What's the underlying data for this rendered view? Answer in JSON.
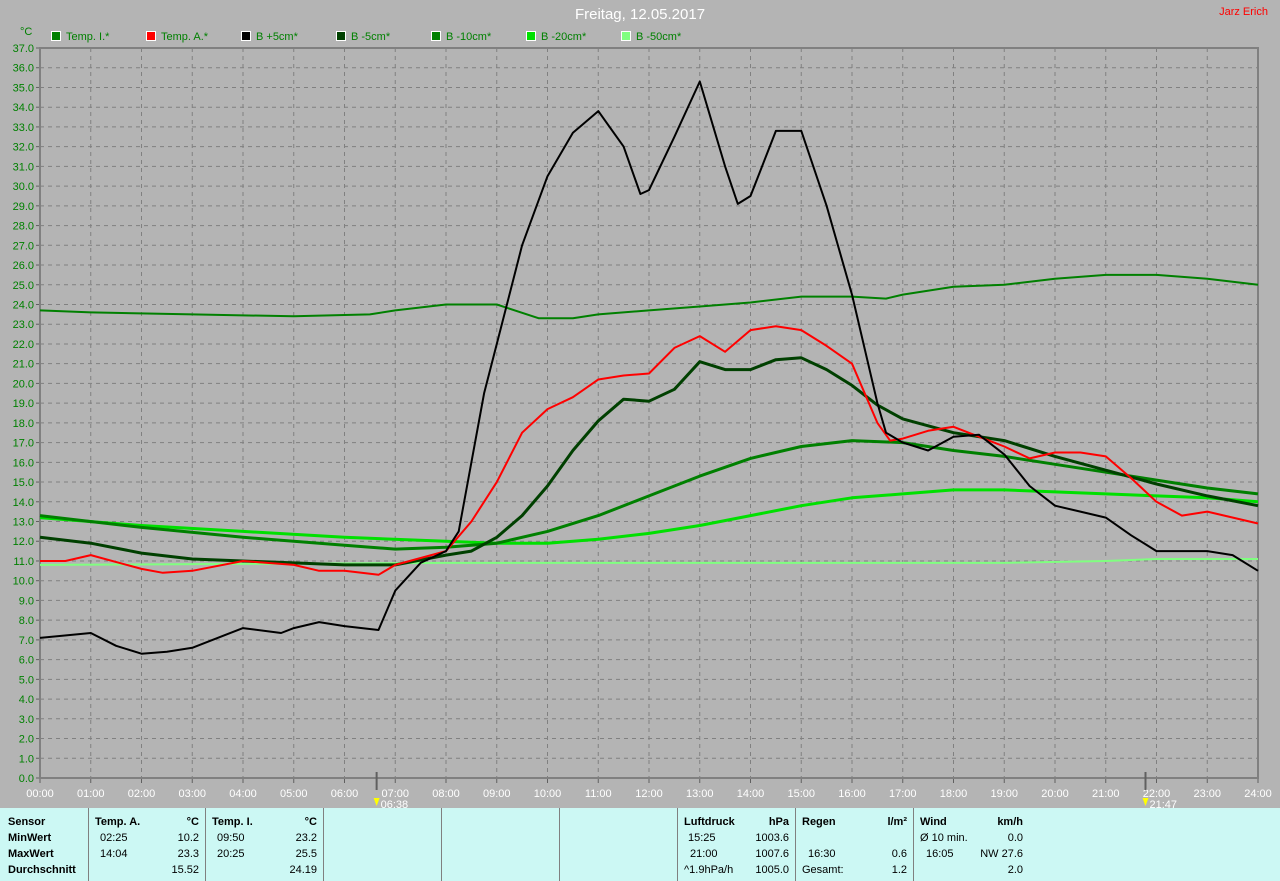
{
  "title": "Freitag, 12.05.2017",
  "author": "Jarz Erich",
  "chart_data": {
    "type": "line",
    "title": "Freitag, 12.05.2017",
    "ylabel": "°C",
    "xlabel": "",
    "ylim": [
      0,
      37
    ],
    "xlim": [
      0,
      24
    ],
    "grid": true,
    "legend_placement": "top",
    "y_ticks": [
      "0.0",
      "1.0",
      "2.0",
      "3.0",
      "4.0",
      "5.0",
      "6.0",
      "7.0",
      "8.0",
      "9.0",
      "10.0",
      "11.0",
      "12.0",
      "13.0",
      "14.0",
      "15.0",
      "16.0",
      "17.0",
      "18.0",
      "19.0",
      "20.0",
      "21.0",
      "22.0",
      "23.0",
      "24.0",
      "25.0",
      "26.0",
      "27.0",
      "28.0",
      "29.0",
      "30.0",
      "31.0",
      "32.0",
      "33.0",
      "34.0",
      "35.0",
      "36.0",
      "37.0"
    ],
    "x_ticks": [
      "00:00",
      "01:00",
      "02:00",
      "03:00",
      "04:00",
      "05:00",
      "06:00",
      "07:00",
      "08:00",
      "09:00",
      "10:00",
      "11:00",
      "12:00",
      "13:00",
      "14:00",
      "15:00",
      "16:00",
      "17:00",
      "18:00",
      "19:00",
      "20:00",
      "21:00",
      "22:00",
      "23:00",
      "24:00"
    ],
    "markers": [
      {
        "label": "06:38",
        "hour": 6.633,
        "icon": "sunrise-icon",
        "color": "#ffff00"
      },
      {
        "label": "21:47",
        "hour": 21.783,
        "icon": "sunset-icon",
        "color": "#ffff00"
      }
    ],
    "series": [
      {
        "name": "Temp. I.*",
        "color": "#008000",
        "points": [
          [
            0,
            23.7
          ],
          [
            1,
            23.6
          ],
          [
            3,
            23.5
          ],
          [
            5,
            23.4
          ],
          [
            6.5,
            23.5
          ],
          [
            7,
            23.7
          ],
          [
            8,
            24.0
          ],
          [
            9,
            24.0
          ],
          [
            9.83,
            23.3
          ],
          [
            10.5,
            23.3
          ],
          [
            11,
            23.5
          ],
          [
            12,
            23.7
          ],
          [
            13,
            23.9
          ],
          [
            14,
            24.1
          ],
          [
            15,
            24.4
          ],
          [
            16,
            24.4
          ],
          [
            16.67,
            24.3
          ],
          [
            17,
            24.5
          ],
          [
            18,
            24.9
          ],
          [
            19,
            25.0
          ],
          [
            20,
            25.3
          ],
          [
            21,
            25.5
          ],
          [
            22,
            25.5
          ],
          [
            23,
            25.3
          ],
          [
            24,
            25.0
          ]
        ]
      },
      {
        "name": "Temp. A.*",
        "color": "#ff0000",
        "points": [
          [
            0,
            11.0
          ],
          [
            0.5,
            11.0
          ],
          [
            1,
            11.3
          ],
          [
            2,
            10.6
          ],
          [
            2.42,
            10.4
          ],
          [
            3,
            10.5
          ],
          [
            4,
            11.0
          ],
          [
            5,
            10.8
          ],
          [
            5.5,
            10.5
          ],
          [
            6,
            10.5
          ],
          [
            6.67,
            10.3
          ],
          [
            7,
            10.8
          ],
          [
            8,
            11.5
          ],
          [
            8.5,
            13.0
          ],
          [
            9,
            15.0
          ],
          [
            9.5,
            17.5
          ],
          [
            10,
            18.7
          ],
          [
            10.5,
            19.3
          ],
          [
            11,
            20.2
          ],
          [
            11.5,
            20.4
          ],
          [
            12,
            20.5
          ],
          [
            12.5,
            21.8
          ],
          [
            13,
            22.4
          ],
          [
            13.5,
            21.6
          ],
          [
            14,
            22.7
          ],
          [
            14.5,
            22.9
          ],
          [
            15,
            22.7
          ],
          [
            15.5,
            21.9
          ],
          [
            16,
            21.0
          ],
          [
            16.5,
            18.0
          ],
          [
            16.75,
            17.1
          ],
          [
            17,
            17.2
          ],
          [
            17.5,
            17.6
          ],
          [
            18,
            17.8
          ],
          [
            18.5,
            17.3
          ],
          [
            19,
            16.8
          ],
          [
            19.5,
            16.2
          ],
          [
            20,
            16.5
          ],
          [
            20.5,
            16.5
          ],
          [
            21,
            16.3
          ],
          [
            21.5,
            15.2
          ],
          [
            22,
            14.0
          ],
          [
            22.5,
            13.3
          ],
          [
            23,
            13.5
          ],
          [
            24,
            12.9
          ]
        ]
      },
      {
        "name": "B +5cm*",
        "color": "#000000",
        "points": [
          [
            0,
            7.1
          ],
          [
            1,
            7.35
          ],
          [
            1.5,
            6.7
          ],
          [
            2,
            6.3
          ],
          [
            2.5,
            6.4
          ],
          [
            3,
            6.6
          ],
          [
            3.5,
            7.1
          ],
          [
            4,
            7.6
          ],
          [
            4.75,
            7.35
          ],
          [
            5,
            7.6
          ],
          [
            5.5,
            7.9
          ],
          [
            6,
            7.7
          ],
          [
            6.67,
            7.5
          ],
          [
            7,
            9.5
          ],
          [
            7.5,
            10.9
          ],
          [
            8,
            11.5
          ],
          [
            8.25,
            12.5
          ],
          [
            8.5,
            16.0
          ],
          [
            8.75,
            19.5
          ],
          [
            9,
            22.0
          ],
          [
            9.5,
            27.0
          ],
          [
            10,
            30.5
          ],
          [
            10.5,
            32.7
          ],
          [
            11,
            33.8
          ],
          [
            11.5,
            32.0
          ],
          [
            11.83,
            29.6
          ],
          [
            12,
            29.8
          ],
          [
            12.5,
            32.5
          ],
          [
            13,
            35.3
          ],
          [
            13.5,
            31.0
          ],
          [
            13.75,
            29.1
          ],
          [
            14,
            29.5
          ],
          [
            14.5,
            32.8
          ],
          [
            15,
            32.8
          ],
          [
            15.5,
            29.0
          ],
          [
            16,
            24.5
          ],
          [
            16.5,
            19.0
          ],
          [
            16.67,
            17.5
          ],
          [
            17,
            17.0
          ],
          [
            17.5,
            16.6
          ],
          [
            18,
            17.3
          ],
          [
            18.5,
            17.4
          ],
          [
            19,
            16.4
          ],
          [
            19.5,
            14.8
          ],
          [
            20,
            13.8
          ],
          [
            20.5,
            13.5
          ],
          [
            21,
            13.2
          ],
          [
            21.5,
            12.3
          ],
          [
            22,
            11.5
          ],
          [
            23,
            11.5
          ],
          [
            23.5,
            11.3
          ],
          [
            24,
            10.5
          ]
        ]
      },
      {
        "name": "B -5cm*",
        "color": "#004000",
        "points": [
          [
            0,
            12.2
          ],
          [
            1,
            11.9
          ],
          [
            2,
            11.4
          ],
          [
            3,
            11.1
          ],
          [
            4,
            11.0
          ],
          [
            5,
            10.9
          ],
          [
            6,
            10.8
          ],
          [
            7,
            10.8
          ],
          [
            8,
            11.3
          ],
          [
            8.5,
            11.5
          ],
          [
            9,
            12.2
          ],
          [
            9.5,
            13.3
          ],
          [
            10,
            14.8
          ],
          [
            10.5,
            16.6
          ],
          [
            11,
            18.1
          ],
          [
            11.5,
            19.2
          ],
          [
            12,
            19.1
          ],
          [
            12.5,
            19.7
          ],
          [
            13,
            21.1
          ],
          [
            13.5,
            20.7
          ],
          [
            14,
            20.7
          ],
          [
            14.5,
            21.2
          ],
          [
            15,
            21.3
          ],
          [
            15.5,
            20.7
          ],
          [
            16,
            19.9
          ],
          [
            16.5,
            18.9
          ],
          [
            17,
            18.2
          ],
          [
            18,
            17.5
          ],
          [
            19,
            17.1
          ],
          [
            20,
            16.3
          ],
          [
            21,
            15.6
          ],
          [
            22,
            14.9
          ],
          [
            23,
            14.3
          ],
          [
            24,
            13.8
          ]
        ]
      },
      {
        "name": "B -10cm*",
        "color": "#008000",
        "points": [
          [
            0,
            13.3
          ],
          [
            2,
            12.7
          ],
          [
            4,
            12.2
          ],
          [
            6,
            11.8
          ],
          [
            7,
            11.6
          ],
          [
            8,
            11.7
          ],
          [
            9,
            11.9
          ],
          [
            10,
            12.5
          ],
          [
            11,
            13.3
          ],
          [
            12,
            14.3
          ],
          [
            13,
            15.3
          ],
          [
            14,
            16.2
          ],
          [
            15,
            16.8
          ],
          [
            16,
            17.1
          ],
          [
            17,
            17.0
          ],
          [
            18,
            16.6
          ],
          [
            19,
            16.3
          ],
          [
            20,
            15.9
          ],
          [
            21,
            15.5
          ],
          [
            22,
            15.1
          ],
          [
            23,
            14.7
          ],
          [
            24,
            14.4
          ]
        ]
      },
      {
        "name": "B -20cm*",
        "color": "#00e000",
        "points": [
          [
            0,
            13.2
          ],
          [
            2,
            12.8
          ],
          [
            4,
            12.5
          ],
          [
            6,
            12.2
          ],
          [
            8,
            12.0
          ],
          [
            9,
            11.9
          ],
          [
            10,
            11.9
          ],
          [
            11,
            12.1
          ],
          [
            12,
            12.4
          ],
          [
            13,
            12.8
          ],
          [
            14,
            13.3
          ],
          [
            15,
            13.8
          ],
          [
            16,
            14.2
          ],
          [
            17,
            14.4
          ],
          [
            18,
            14.6
          ],
          [
            19,
            14.6
          ],
          [
            20,
            14.5
          ],
          [
            21,
            14.4
          ],
          [
            22,
            14.3
          ],
          [
            23,
            14.2
          ],
          [
            24,
            14.0
          ]
        ]
      },
      {
        "name": "B -50cm*",
        "color": "#80ff80",
        "points": [
          [
            0,
            10.8
          ],
          [
            4,
            10.85
          ],
          [
            8,
            10.9
          ],
          [
            12,
            10.9
          ],
          [
            16,
            10.9
          ],
          [
            19,
            10.9
          ],
          [
            21,
            11.0
          ],
          [
            22,
            11.1
          ],
          [
            24,
            11.1
          ]
        ]
      }
    ]
  },
  "panel": {
    "sensor": {
      "header": "Sensor",
      "rows": [
        "MinWert",
        "MaxWert",
        "Durchschnitt"
      ]
    },
    "temp_a": {
      "header": "Temp. A.",
      "unit": "°C",
      "min_time": "02:25",
      "min": "10.2",
      "max_time": "14:04",
      "max": "23.3",
      "avg": "15.52"
    },
    "temp_i": {
      "header": "Temp. I.",
      "unit": "°C",
      "min_time": "09:50",
      "min": "23.2",
      "max_time": "20:25",
      "max": "25.5",
      "avg": "24.19"
    },
    "luftdruck": {
      "header": "Luftdruck",
      "unit": "hPa",
      "min_time": "15:25",
      "min": "1003.6",
      "max_time": "21:00",
      "max": "1007.6",
      "trend": "^1.9hPa/h",
      "avg": "1005.0"
    },
    "regen": {
      "header": "Regen",
      "unit": "l/m²",
      "max_time": "16:30",
      "max": "0.6",
      "total_label": "Gesamt:",
      "total": "1.2"
    },
    "wind": {
      "header": "Wind",
      "unit": "km/h",
      "avg_label": "Ø 10 min.",
      "avg10": "0.0",
      "max_time": "16:05",
      "max": "NW 27.6",
      "avg": "2.0"
    }
  }
}
